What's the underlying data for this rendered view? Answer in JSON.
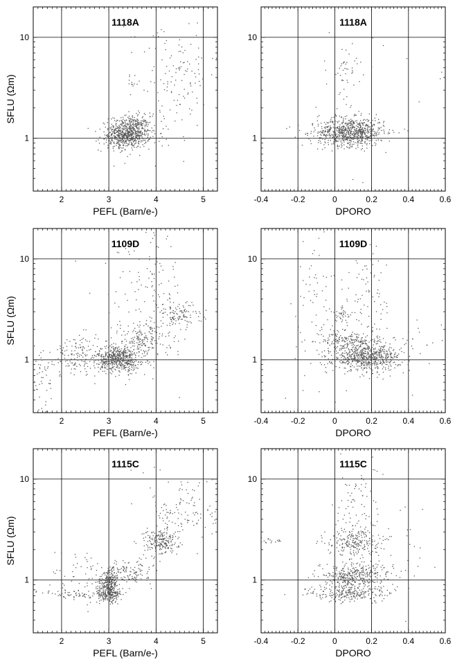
{
  "chart_data": [
    {
      "type": "scatter",
      "title": "1118A",
      "xlabel": "PEFL (Barn/e-)",
      "ylabel": "SFLU (Ωm)",
      "xlim": [
        1.4,
        5.3
      ],
      "ylim": [
        0.3,
        20
      ],
      "yscale": "log",
      "grid": true,
      "xticks": [
        2,
        3,
        4,
        5
      ],
      "xtick_labels": [
        "2",
        "3",
        "4",
        "5"
      ],
      "yticks": [
        1,
        10
      ],
      "ytick_labels": [
        "1",
        "10"
      ],
      "clusters": [
        {
          "cx": 3.45,
          "cy": 1.15,
          "sx": 0.22,
          "sy": 0.08,
          "n": 650
        },
        {
          "cx": 3.15,
          "cy": 1.0,
          "sx": 0.18,
          "sy": 0.06,
          "n": 120
        },
        {
          "cx": 3.5,
          "cy": 3.4,
          "sx": 0.06,
          "sy": 0.04,
          "n": 12
        },
        {
          "cx": 4.5,
          "cy": 4.5,
          "sx": 0.4,
          "sy": 0.2,
          "n": 90
        },
        {
          "cx": 4.2,
          "cy": 1.9,
          "sx": 0.3,
          "sy": 0.25,
          "n": 50
        },
        {
          "cx": 4.0,
          "cy": 10,
          "sx": 0.3,
          "sy": 0.08,
          "n": 8
        }
      ]
    },
    {
      "type": "scatter",
      "title": "1118A",
      "xlabel": "DPORO",
      "ylabel": "",
      "xlim": [
        -0.4,
        0.6
      ],
      "ylim": [
        0.3,
        20
      ],
      "yscale": "log",
      "grid": true,
      "xticks": [
        -0.4,
        -0.2,
        0,
        0.2,
        0.4,
        0.6
      ],
      "xtick_labels": [
        "-0.4",
        "-0.2",
        "0",
        "0.2",
        "0.4",
        "0.6"
      ],
      "yticks": [
        1,
        10
      ],
      "ytick_labels": [
        "1",
        "10"
      ],
      "clusters": [
        {
          "cx": 0.09,
          "cy": 1.15,
          "sx": 0.09,
          "sy": 0.07,
          "n": 750
        },
        {
          "cx": 0.07,
          "cy": 5.0,
          "sx": 0.04,
          "sy": 0.1,
          "n": 35
        },
        {
          "cx": 0.05,
          "cy": 2.0,
          "sx": 0.07,
          "sy": 0.3,
          "n": 40
        },
        {
          "cx": 0.35,
          "cy": 3.0,
          "sx": 0.15,
          "sy": 0.3,
          "n": 10
        },
        {
          "cx": -0.1,
          "cy": 1.1,
          "sx": 0.08,
          "sy": 0.06,
          "n": 30
        }
      ]
    },
    {
      "type": "scatter",
      "title": "1109D",
      "xlabel": "PEFL (Barn/e-)",
      "ylabel": "SFLU (Ωm)",
      "xlim": [
        1.4,
        5.3
      ],
      "ylim": [
        0.3,
        20
      ],
      "yscale": "log",
      "grid": true,
      "xticks": [
        2,
        3,
        4,
        5
      ],
      "xtick_labels": [
        "2",
        "3",
        "4",
        "5"
      ],
      "yticks": [
        1,
        10
      ],
      "ytick_labels": [
        "1",
        "10"
      ],
      "clusters": [
        {
          "cx": 3.2,
          "cy": 1.05,
          "sx": 0.22,
          "sy": 0.06,
          "n": 420
        },
        {
          "cx": 3.3,
          "cy": 0.92,
          "sx": 0.25,
          "sy": 0.05,
          "n": 120
        },
        {
          "cx": 3.7,
          "cy": 1.55,
          "sx": 0.3,
          "sy": 0.08,
          "n": 160
        },
        {
          "cx": 4.5,
          "cy": 2.8,
          "sx": 0.25,
          "sy": 0.06,
          "n": 110
        },
        {
          "cx": 2.4,
          "cy": 1.1,
          "sx": 0.4,
          "sy": 0.1,
          "n": 160
        },
        {
          "cx": 1.6,
          "cy": 0.65,
          "sx": 0.15,
          "sy": 0.15,
          "n": 50
        },
        {
          "cx": 4.0,
          "cy": 4.5,
          "sx": 0.3,
          "sy": 0.3,
          "n": 100
        },
        {
          "cx": 3.5,
          "cy": 2.5,
          "sx": 0.4,
          "sy": 0.35,
          "n": 60
        }
      ]
    },
    {
      "type": "scatter",
      "title": "1109D",
      "xlabel": "DPORO",
      "ylabel": "",
      "xlim": [
        -0.4,
        0.6
      ],
      "ylim": [
        0.3,
        20
      ],
      "yscale": "log",
      "grid": true,
      "xticks": [
        -0.4,
        -0.2,
        0,
        0.2,
        0.4,
        0.6
      ],
      "xtick_labels": [
        "-0.4",
        "-0.2",
        "0",
        "0.2",
        "0.4",
        "0.6"
      ],
      "yticks": [
        1,
        10
      ],
      "ytick_labels": [
        "1",
        "10"
      ],
      "clusters": [
        {
          "cx": 0.17,
          "cy": 1.05,
          "sx": 0.09,
          "sy": 0.06,
          "n": 600
        },
        {
          "cx": 0.08,
          "cy": 1.6,
          "sx": 0.08,
          "sy": 0.05,
          "n": 120
        },
        {
          "cx": 0.1,
          "cy": 1.4,
          "sx": 0.08,
          "sy": 0.04,
          "n": 80
        },
        {
          "cx": 0.04,
          "cy": 2.8,
          "sx": 0.03,
          "sy": 0.04,
          "n": 40
        },
        {
          "cx": 0.18,
          "cy": 4.0,
          "sx": 0.05,
          "sy": 0.25,
          "n": 70
        },
        {
          "cx": -0.1,
          "cy": 5.0,
          "sx": 0.06,
          "sy": 0.3,
          "n": 40
        },
        {
          "cx": 0.35,
          "cy": 1.2,
          "sx": 0.12,
          "sy": 0.15,
          "n": 45
        },
        {
          "cx": 0.0,
          "cy": 1.8,
          "sx": 0.15,
          "sy": 0.35,
          "n": 50
        }
      ]
    },
    {
      "type": "scatter",
      "title": "1115C",
      "xlabel": "PEFL (Barn/e-)",
      "ylabel": "SFLU (Ωm)",
      "xlim": [
        1.4,
        5.3
      ],
      "ylim": [
        0.3,
        20
      ],
      "yscale": "log",
      "grid": true,
      "xticks": [
        2,
        3,
        4,
        5
      ],
      "xtick_labels": [
        "2",
        "3",
        "4",
        "5"
      ],
      "yticks": [
        1,
        10
      ],
      "ytick_labels": [
        "1",
        "10"
      ],
      "clusters": [
        {
          "cx": 3.0,
          "cy": 0.72,
          "sx": 0.15,
          "sy": 0.04,
          "n": 170
        },
        {
          "cx": 3.0,
          "cy": 0.82,
          "sx": 0.08,
          "sy": 0.06,
          "n": 90
        },
        {
          "cx": 3.0,
          "cy": 1.0,
          "sx": 0.12,
          "sy": 0.05,
          "n": 160
        },
        {
          "cx": 3.4,
          "cy": 1.2,
          "sx": 0.25,
          "sy": 0.06,
          "n": 130
        },
        {
          "cx": 4.1,
          "cy": 2.4,
          "sx": 0.18,
          "sy": 0.07,
          "n": 210
        },
        {
          "cx": 4.6,
          "cy": 5.0,
          "sx": 0.35,
          "sy": 0.18,
          "n": 120
        },
        {
          "cx": 2.3,
          "cy": 0.72,
          "sx": 0.35,
          "sy": 0.03,
          "n": 60
        },
        {
          "cx": 2.4,
          "cy": 1.1,
          "sx": 0.3,
          "sy": 0.15,
          "n": 50
        }
      ]
    },
    {
      "type": "scatter",
      "title": "1115C",
      "xlabel": "DPORO",
      "ylabel": "",
      "xlim": [
        -0.4,
        0.6
      ],
      "ylim": [
        0.3,
        20
      ],
      "yscale": "log",
      "grid": true,
      "xticks": [
        -0.4,
        -0.2,
        0,
        0.2,
        0.4,
        0.6
      ],
      "xtick_labels": [
        "-0.4",
        "-0.2",
        "0",
        "0.2",
        "0.4",
        "0.6"
      ],
      "yticks": [
        1,
        10
      ],
      "ytick_labels": [
        "1",
        "10"
      ],
      "clusters": [
        {
          "cx": 0.1,
          "cy": 2.4,
          "sx": 0.07,
          "sy": 0.07,
          "n": 230
        },
        {
          "cx": 0.12,
          "cy": 1.25,
          "sx": 0.1,
          "sy": 0.04,
          "n": 160
        },
        {
          "cx": 0.08,
          "cy": 1.0,
          "sx": 0.08,
          "sy": 0.05,
          "n": 200
        },
        {
          "cx": 0.08,
          "cy": 0.73,
          "sx": 0.12,
          "sy": 0.04,
          "n": 230
        },
        {
          "cx": 0.12,
          "cy": 5.5,
          "sx": 0.06,
          "sy": 0.2,
          "n": 70
        },
        {
          "cx": -0.35,
          "cy": 2.5,
          "sx": 0.04,
          "sy": 0.02,
          "n": 20
        },
        {
          "cx": 0.3,
          "cy": 1.8,
          "sx": 0.15,
          "sy": 0.3,
          "n": 50
        }
      ]
    }
  ],
  "colors": {
    "point": "#555555",
    "grid": "#000000",
    "frame": "#000000"
  }
}
